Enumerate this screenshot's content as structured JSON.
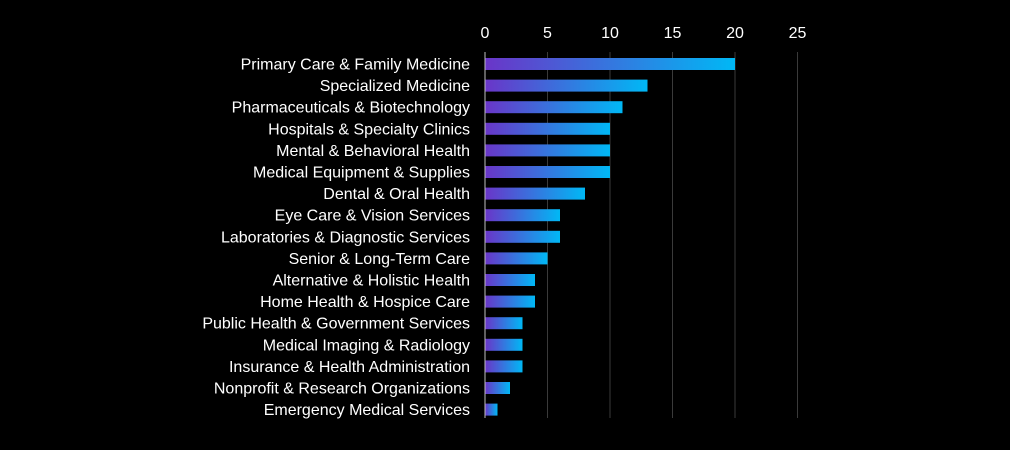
{
  "chart_data": {
    "type": "bar",
    "orientation": "horizontal",
    "title": "",
    "xlabel": "",
    "ylabel": "",
    "xlim": [
      0,
      25
    ],
    "x_ticks": [
      0,
      5,
      10,
      15,
      20,
      25
    ],
    "x_axis_position": "top",
    "grid": true,
    "legend": "none",
    "categories": [
      "Primary Care & Family Medicine",
      "Specialized Medicine",
      "Pharmaceuticals & Biotechnology",
      "Hospitals & Specialty Clinics",
      "Mental & Behavioral Health",
      "Medical Equipment & Supplies",
      "Dental & Oral Health",
      "Eye Care & Vision Services",
      "Laboratories & Diagnostic Services",
      "Senior & Long-Term Care",
      "Alternative & Holistic Health",
      "Home Health & Hospice Care",
      "Public Health & Government Services",
      "Medical Imaging & Radiology",
      "Insurance & Health Administration",
      "Nonprofit & Research Organizations",
      "Emergency Medical Services"
    ],
    "values": [
      20,
      13,
      11,
      10,
      10,
      10,
      8,
      6,
      6,
      5,
      4,
      4,
      3,
      3,
      3,
      2,
      1
    ],
    "colors": {
      "background": "#000000",
      "bar_gradient_start": "#6a35c8",
      "bar_gradient_end": "#00b8f5",
      "text": "#ffffff",
      "grid": "#3a3a3a"
    }
  }
}
